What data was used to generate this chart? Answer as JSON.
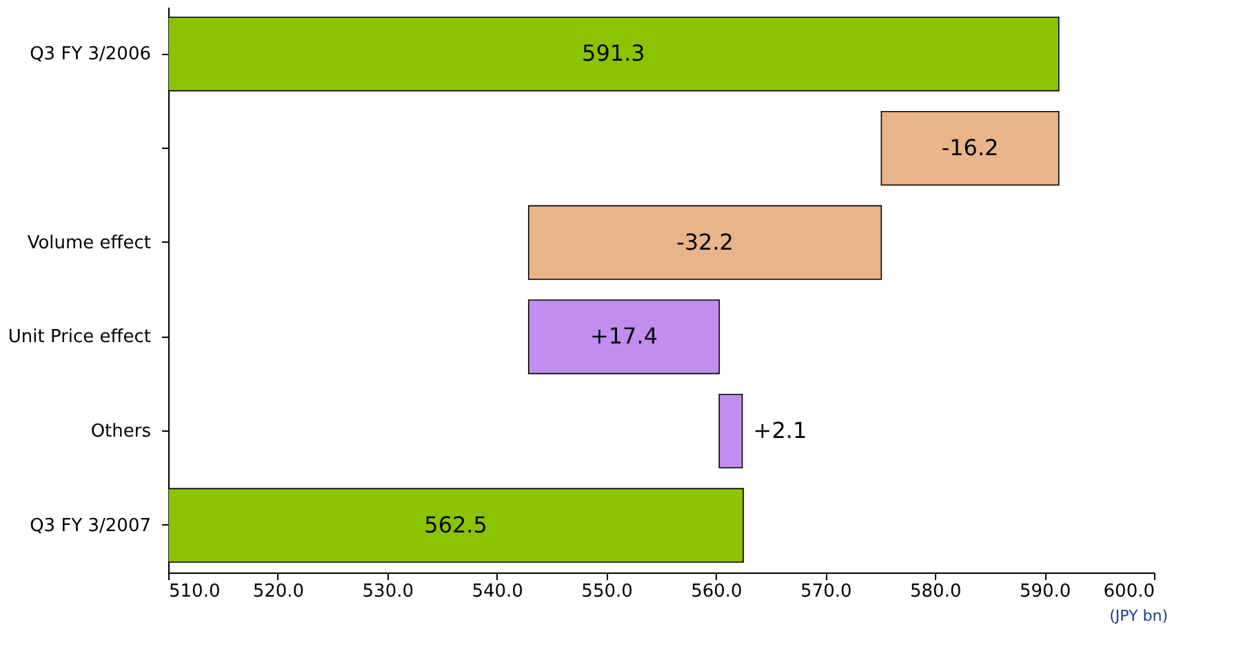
{
  "chart_data": {
    "type": "bar",
    "orientation": "horizontal",
    "categories": [
      "Q3 FY 3/2006",
      null,
      "Volume effect",
      "Unit Price effect",
      "Others",
      "Q3 FY 3/2007"
    ],
    "base": [
      510,
      591.3,
      575.1,
      542.9,
      560.3,
      510
    ],
    "values": [
      81.3,
      -16.2,
      -32.2,
      17.4,
      2.1,
      52.5
    ],
    "colors": [
      "#8cc300",
      "#e8b48a",
      "#e8b48a",
      "#c08ef0",
      "#c08ef0",
      "#8cc300"
    ],
    "value_labels": [
      "591.3",
      "-16.2",
      "-32.2",
      "+17.4",
      "+2.1",
      "562.5"
    ],
    "xlim": [
      510,
      600
    ],
    "xticks": [
      {
        "value": 510,
        "label": "510.0"
      },
      {
        "value": 520,
        "label": "520.0"
      },
      {
        "value": 530,
        "label": "530.0"
      },
      {
        "value": 540,
        "label": "540.0"
      },
      {
        "value": 550,
        "label": "550.0"
      },
      {
        "value": 560,
        "label": "560.0"
      },
      {
        "value": 570,
        "label": "570.0"
      },
      {
        "value": 580,
        "label": "580.0"
      },
      {
        "value": 590,
        "label": "590.0"
      },
      {
        "value": 600,
        "label": "600.0"
      }
    ],
    "annotations": [
      "(JPY bn)"
    ],
    "grid": false
  }
}
